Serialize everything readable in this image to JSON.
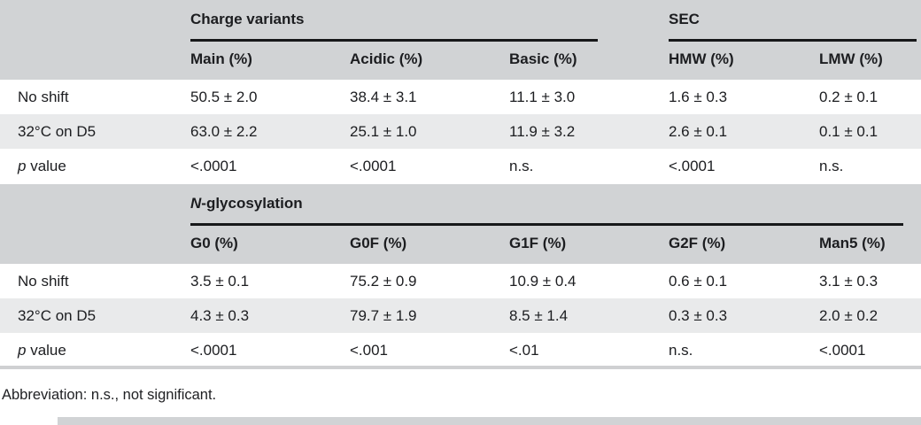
{
  "meta": {
    "colors": {
      "band_gray": "#d1d3d5",
      "stripe_gray": "#e9eaeb",
      "rule_black": "#17181a",
      "footrule_gray": "#cfd0d2",
      "text": "#1c1d20"
    }
  },
  "table": {
    "section1": {
      "groups": [
        {
          "italic": "",
          "text": "Charge variants"
        },
        {
          "italic": "",
          "text": "SEC"
        }
      ],
      "columns": [
        "Main (%)",
        "Acidic (%)",
        "Basic (%)",
        "HMW (%)",
        "LMW (%)"
      ],
      "rows": [
        {
          "label_italic": "",
          "label_text": "No shift",
          "values": [
            "50.5 ± 2.0",
            "38.4 ± 3.1",
            "11.1 ± 3.0",
            "1.6 ± 0.3",
            "0.2 ± 0.1"
          ]
        },
        {
          "label_italic": "",
          "label_text": "32°C on D5",
          "values": [
            "63.0 ± 2.2",
            "25.1 ± 1.0",
            "11.9 ± 3.2",
            "2.6 ± 0.1",
            "0.1 ± 0.1"
          ]
        },
        {
          "label_italic": "p",
          "label_text": " value",
          "values": [
            "<.0001",
            "<.0001",
            "n.s.",
            "<.0001",
            "n.s."
          ]
        }
      ]
    },
    "section2": {
      "groups": [
        {
          "italic": "N",
          "text": "-glycosylation"
        }
      ],
      "columns": [
        "G0 (%)",
        "G0F (%)",
        "G1F (%)",
        "G2F (%)",
        "Man5 (%)"
      ],
      "rows": [
        {
          "label_italic": "",
          "label_text": "No shift",
          "values": [
            "3.5 ± 0.1",
            "75.2 ± 0.9",
            "10.9 ± 0.4",
            "0.6 ± 0.1",
            "3.1 ± 0.3"
          ]
        },
        {
          "label_italic": "",
          "label_text": "32°C on D5",
          "values": [
            "4.3 ± 0.3",
            "79.7 ± 1.9",
            "8.5 ± 1.4",
            "0.3 ± 0.3",
            "2.0 ± 0.2"
          ]
        },
        {
          "label_italic": "p",
          "label_text": " value",
          "values": [
            "<.0001",
            "<.001",
            "<.01",
            "n.s.",
            "<.0001"
          ]
        }
      ]
    },
    "footnote": "Abbreviation: n.s., not significant."
  }
}
